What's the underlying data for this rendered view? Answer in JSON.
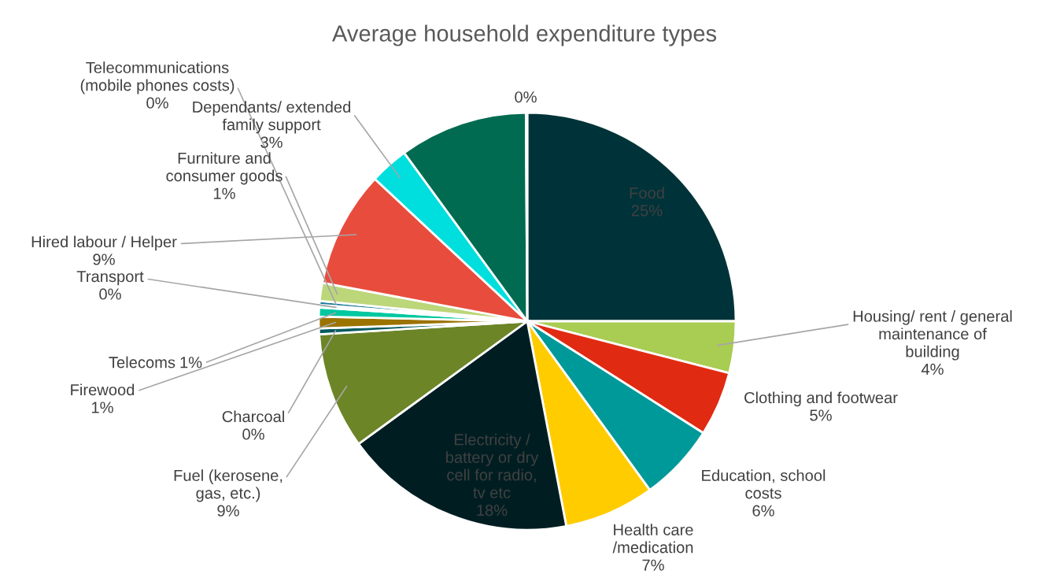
{
  "chart_data": {
    "type": "pie",
    "title": "Average household expenditure types",
    "categories": [
      "Food",
      "Housing/ rent / general\nmaintenance of\nbuilding",
      "Clothing and footwear",
      "Education, school\ncosts",
      "Health care\n/medication",
      "Electricity /\nbattery or dry\ncell for radio,\ntv etc",
      "Fuel (kerosene,\ngas, etc.)",
      "Charcoal",
      "Firewood",
      "Telecoms",
      "Transport",
      "Telecommunications\n(mobile phones costs)",
      "Furniture and\nconsumer goods",
      "Hired labour / Helper",
      "Dependants/ extended\nfamily support",
      null,
      null
    ],
    "values": [
      25,
      4,
      5,
      6,
      7,
      18,
      9,
      0.45,
      0.9,
      0.7,
      0.2,
      0.3,
      1.4,
      9,
      3,
      9.95,
      0.1
    ],
    "value_labels": [
      "25%",
      "4%",
      "5%",
      "6%",
      "7%",
      "18%",
      "9%",
      "0%",
      "1%",
      "1%",
      "0%",
      "0%",
      "1%",
      "9%",
      "3%",
      null,
      "0%"
    ],
    "colors": [
      "#003339",
      "#a9cc52",
      "#e12a12",
      "#00999a",
      "#ffcc00",
      "#001e22",
      "#6c8527",
      "#005a5e",
      "#9b7300",
      "#00c8a0",
      "#a0e8e8",
      "#1a7a9a",
      "#bcd67a",
      "#e84c3d",
      "#00dede",
      "#006b50",
      "#003339"
    ]
  }
}
